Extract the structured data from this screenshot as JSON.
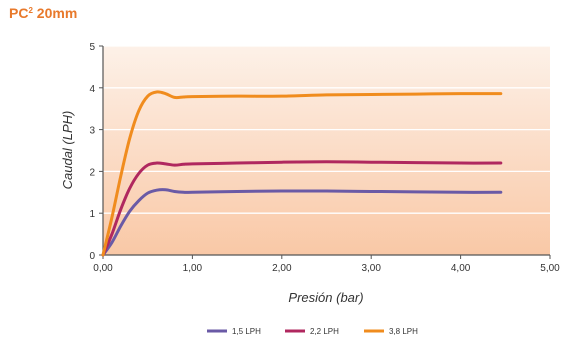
{
  "chart_data": {
    "type": "line",
    "title": {
      "prefix": "PC",
      "sup": "2",
      "suffix": " 20mm"
    },
    "xlabel": "Presión (bar)",
    "ylabel": "Caudal (LPH)",
    "xlim": [
      0,
      5
    ],
    "ylim": [
      0,
      5
    ],
    "x_ticks": [
      0,
      1,
      2,
      3,
      4,
      5
    ],
    "x_tick_labels": [
      "0,00",
      "1,00",
      "2,00",
      "3,00",
      "4,00",
      "5,00"
    ],
    "y_ticks": [
      0,
      1,
      2,
      3,
      4,
      5
    ],
    "y_tick_labels": [
      "0",
      "1",
      "2",
      "3",
      "4",
      "5"
    ],
    "grid": "horizontal",
    "legend_position": "bottom",
    "series": [
      {
        "name": "1,5 LPH",
        "color": "#6a5aa6",
        "points": [
          [
            0,
            0
          ],
          [
            0.1,
            0.3
          ],
          [
            0.2,
            0.7
          ],
          [
            0.3,
            1.05
          ],
          [
            0.4,
            1.3
          ],
          [
            0.5,
            1.48
          ],
          [
            0.6,
            1.55
          ],
          [
            0.7,
            1.56
          ],
          [
            0.8,
            1.52
          ],
          [
            0.9,
            1.5
          ],
          [
            1.0,
            1.5
          ],
          [
            1.5,
            1.52
          ],
          [
            2.0,
            1.53
          ],
          [
            2.5,
            1.53
          ],
          [
            3.0,
            1.52
          ],
          [
            3.5,
            1.51
          ],
          [
            4.0,
            1.5
          ],
          [
            4.45,
            1.5
          ]
        ]
      },
      {
        "name": "2,2 LPH",
        "color": "#b0285f",
        "points": [
          [
            0,
            0
          ],
          [
            0.1,
            0.5
          ],
          [
            0.2,
            1.1
          ],
          [
            0.3,
            1.6
          ],
          [
            0.4,
            1.95
          ],
          [
            0.5,
            2.15
          ],
          [
            0.6,
            2.2
          ],
          [
            0.7,
            2.18
          ],
          [
            0.8,
            2.15
          ],
          [
            0.9,
            2.17
          ],
          [
            1.0,
            2.18
          ],
          [
            1.5,
            2.2
          ],
          [
            2.0,
            2.22
          ],
          [
            2.5,
            2.23
          ],
          [
            3.0,
            2.22
          ],
          [
            3.5,
            2.21
          ],
          [
            4.0,
            2.2
          ],
          [
            4.45,
            2.2
          ]
        ]
      },
      {
        "name": "3,8 LPH",
        "color": "#f08c1e",
        "points": [
          [
            0,
            0
          ],
          [
            0.1,
            0.9
          ],
          [
            0.2,
            1.9
          ],
          [
            0.3,
            2.8
          ],
          [
            0.4,
            3.45
          ],
          [
            0.5,
            3.8
          ],
          [
            0.6,
            3.9
          ],
          [
            0.7,
            3.86
          ],
          [
            0.8,
            3.77
          ],
          [
            0.9,
            3.78
          ],
          [
            1.0,
            3.79
          ],
          [
            1.5,
            3.8
          ],
          [
            2.0,
            3.8
          ],
          [
            2.5,
            3.83
          ],
          [
            3.0,
            3.84
          ],
          [
            3.5,
            3.85
          ],
          [
            4.0,
            3.86
          ],
          [
            4.45,
            3.86
          ]
        ]
      }
    ]
  }
}
